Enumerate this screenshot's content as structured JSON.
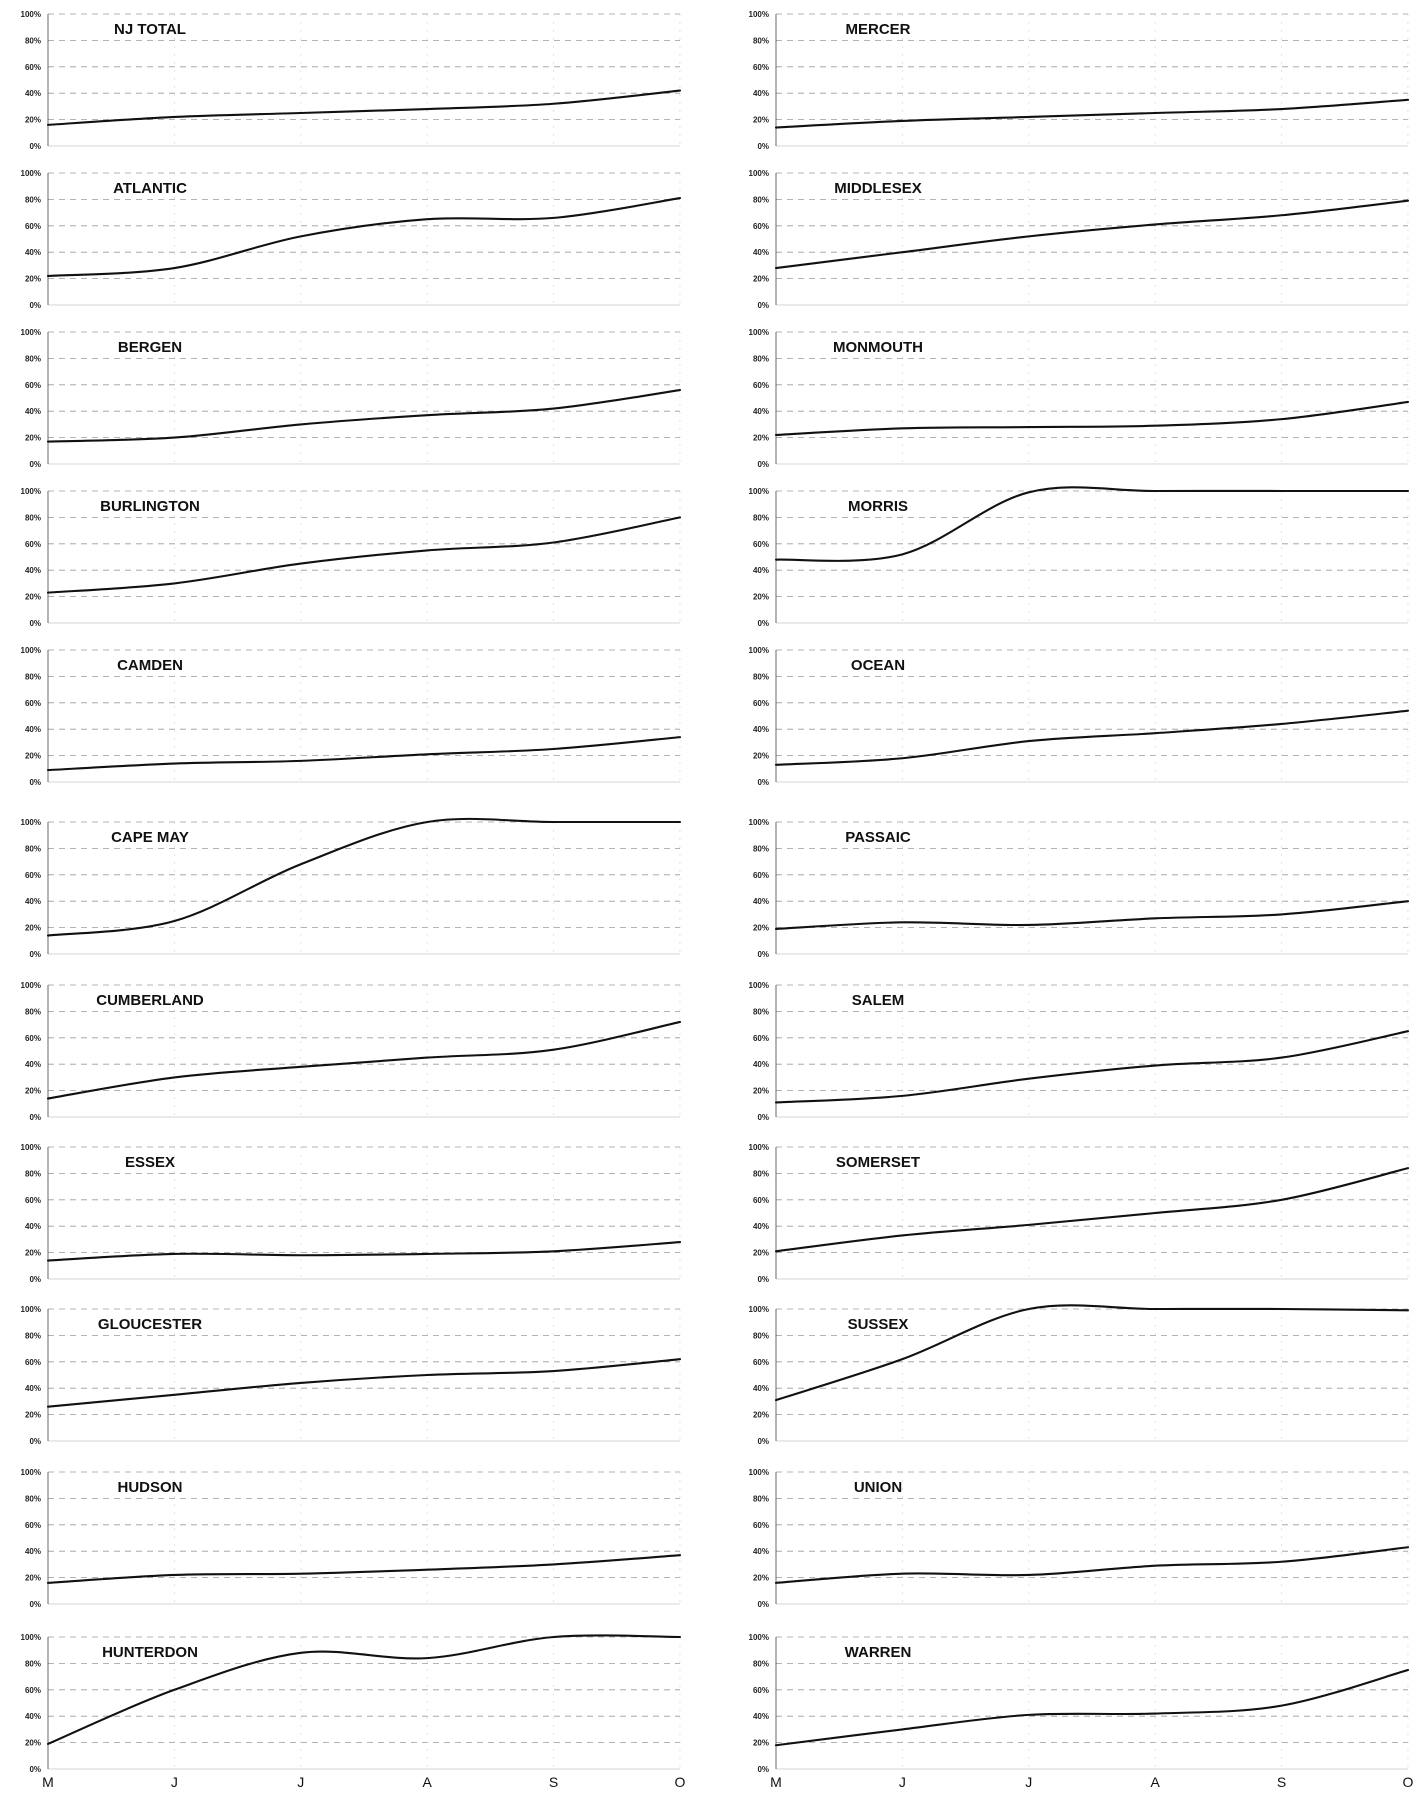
{
  "colors": {
    "line": "#111111",
    "grid": "#9a9a9a",
    "background": "#ffffff"
  },
  "y_ticks": [
    "100%",
    "80%",
    "60%",
    "40%",
    "20%",
    "0%"
  ],
  "x_labels": [
    "M",
    "J",
    "J",
    "A",
    "S",
    "O"
  ],
  "chart_data": [
    {
      "type": "line",
      "title": "NJ TOTAL",
      "categories": [
        "M",
        "J",
        "J",
        "A",
        "S",
        "O"
      ],
      "ylim": [
        0,
        100
      ],
      "grid": true,
      "series": [
        {
          "values": [
            16,
            22,
            25,
            28,
            32,
            42
          ]
        }
      ]
    },
    {
      "type": "line",
      "title": "MERCER",
      "categories": [
        "M",
        "J",
        "J",
        "A",
        "S",
        "O"
      ],
      "ylim": [
        0,
        100
      ],
      "grid": true,
      "series": [
        {
          "values": [
            14,
            19,
            22,
            25,
            28,
            35
          ]
        }
      ]
    },
    {
      "type": "line",
      "title": "ATLANTIC",
      "categories": [
        "M",
        "J",
        "J",
        "A",
        "S",
        "O"
      ],
      "ylim": [
        0,
        100
      ],
      "grid": true,
      "series": [
        {
          "values": [
            22,
            28,
            52,
            65,
            66,
            81
          ]
        }
      ]
    },
    {
      "type": "line",
      "title": "MIDDLESEX",
      "categories": [
        "M",
        "J",
        "J",
        "A",
        "S",
        "O"
      ],
      "ylim": [
        0,
        100
      ],
      "grid": true,
      "series": [
        {
          "values": [
            28,
            40,
            52,
            61,
            68,
            79
          ]
        }
      ]
    },
    {
      "type": "line",
      "title": "BERGEN",
      "categories": [
        "M",
        "J",
        "J",
        "A",
        "S",
        "O"
      ],
      "ylim": [
        0,
        100
      ],
      "grid": true,
      "series": [
        {
          "values": [
            17,
            20,
            30,
            37,
            42,
            56
          ]
        }
      ]
    },
    {
      "type": "line",
      "title": "MONMOUTH",
      "categories": [
        "M",
        "J",
        "J",
        "A",
        "S",
        "O"
      ],
      "ylim": [
        0,
        100
      ],
      "grid": true,
      "series": [
        {
          "values": [
            22,
            27,
            28,
            29,
            34,
            47
          ]
        }
      ]
    },
    {
      "type": "line",
      "title": "BURLINGTON",
      "categories": [
        "M",
        "J",
        "J",
        "A",
        "S",
        "O"
      ],
      "ylim": [
        0,
        100
      ],
      "grid": true,
      "series": [
        {
          "values": [
            23,
            30,
            45,
            55,
            61,
            80
          ]
        }
      ]
    },
    {
      "type": "line",
      "title": "MORRIS",
      "categories": [
        "M",
        "J",
        "J",
        "A",
        "S",
        "O"
      ],
      "ylim": [
        0,
        100
      ],
      "grid": true,
      "series": [
        {
          "values": [
            48,
            52,
            99,
            100,
            100,
            100
          ]
        }
      ]
    },
    {
      "type": "line",
      "title": "CAMDEN",
      "categories": [
        "M",
        "J",
        "J",
        "A",
        "S",
        "O"
      ],
      "ylim": [
        0,
        100
      ],
      "grid": true,
      "series": [
        {
          "values": [
            9,
            14,
            16,
            21,
            25,
            34
          ]
        }
      ]
    },
    {
      "type": "line",
      "title": "OCEAN",
      "categories": [
        "M",
        "J",
        "J",
        "A",
        "S",
        "O"
      ],
      "ylim": [
        0,
        100
      ],
      "grid": true,
      "series": [
        {
          "values": [
            13,
            18,
            31,
            37,
            44,
            54
          ]
        }
      ]
    },
    {
      "type": "line",
      "title": "CAPE MAY",
      "categories": [
        "M",
        "J",
        "J",
        "A",
        "S",
        "O"
      ],
      "ylim": [
        0,
        100
      ],
      "grid": true,
      "series": [
        {
          "values": [
            14,
            25,
            68,
            100,
            100,
            100
          ]
        }
      ]
    },
    {
      "type": "line",
      "title": "PASSAIC",
      "categories": [
        "M",
        "J",
        "J",
        "A",
        "S",
        "O"
      ],
      "ylim": [
        0,
        100
      ],
      "grid": true,
      "series": [
        {
          "values": [
            19,
            24,
            22,
            27,
            30,
            40
          ]
        }
      ]
    },
    {
      "type": "line",
      "title": "CUMBERLAND",
      "categories": [
        "M",
        "J",
        "J",
        "A",
        "S",
        "O"
      ],
      "ylim": [
        0,
        100
      ],
      "grid": true,
      "series": [
        {
          "values": [
            14,
            30,
            38,
            45,
            51,
            72
          ]
        }
      ]
    },
    {
      "type": "line",
      "title": "SALEM",
      "categories": [
        "M",
        "J",
        "J",
        "A",
        "S",
        "O"
      ],
      "ylim": [
        0,
        100
      ],
      "grid": true,
      "series": [
        {
          "values": [
            11,
            16,
            29,
            39,
            45,
            65
          ]
        }
      ]
    },
    {
      "type": "line",
      "title": "ESSEX",
      "categories": [
        "M",
        "J",
        "J",
        "A",
        "S",
        "O"
      ],
      "ylim": [
        0,
        100
      ],
      "grid": true,
      "series": [
        {
          "values": [
            14,
            19,
            18,
            19,
            21,
            28
          ]
        }
      ]
    },
    {
      "type": "line",
      "title": "SOMERSET",
      "categories": [
        "M",
        "J",
        "J",
        "A",
        "S",
        "O"
      ],
      "ylim": [
        0,
        100
      ],
      "grid": true,
      "series": [
        {
          "values": [
            21,
            33,
            41,
            50,
            60,
            84
          ]
        }
      ]
    },
    {
      "type": "line",
      "title": "GLOUCESTER",
      "categories": [
        "M",
        "J",
        "J",
        "A",
        "S",
        "O"
      ],
      "ylim": [
        0,
        100
      ],
      "grid": true,
      "series": [
        {
          "values": [
            26,
            35,
            44,
            50,
            53,
            62
          ]
        }
      ]
    },
    {
      "type": "line",
      "title": "SUSSEX",
      "categories": [
        "M",
        "J",
        "J",
        "A",
        "S",
        "O"
      ],
      "ylim": [
        0,
        100
      ],
      "grid": true,
      "series": [
        {
          "values": [
            31,
            62,
            100,
            100,
            100,
            99
          ]
        }
      ]
    },
    {
      "type": "line",
      "title": "HUDSON",
      "categories": [
        "M",
        "J",
        "J",
        "A",
        "S",
        "O"
      ],
      "ylim": [
        0,
        100
      ],
      "grid": true,
      "series": [
        {
          "values": [
            16,
            22,
            23,
            26,
            30,
            37
          ]
        }
      ]
    },
    {
      "type": "line",
      "title": "UNION",
      "categories": [
        "M",
        "J",
        "J",
        "A",
        "S",
        "O"
      ],
      "ylim": [
        0,
        100
      ],
      "grid": true,
      "series": [
        {
          "values": [
            16,
            23,
            22,
            29,
            32,
            43
          ]
        }
      ]
    },
    {
      "type": "line",
      "title": "HUNTERDON",
      "categories": [
        "M",
        "J",
        "J",
        "A",
        "S",
        "O"
      ],
      "ylim": [
        0,
        100
      ],
      "grid": true,
      "series": [
        {
          "values": [
            19,
            60,
            88,
            84,
            100,
            100
          ]
        }
      ]
    },
    {
      "type": "line",
      "title": "WARREN",
      "categories": [
        "M",
        "J",
        "J",
        "A",
        "S",
        "O"
      ],
      "ylim": [
        0,
        100
      ],
      "grid": true,
      "series": [
        {
          "values": [
            18,
            30,
            41,
            42,
            48,
            75
          ]
        }
      ]
    }
  ]
}
